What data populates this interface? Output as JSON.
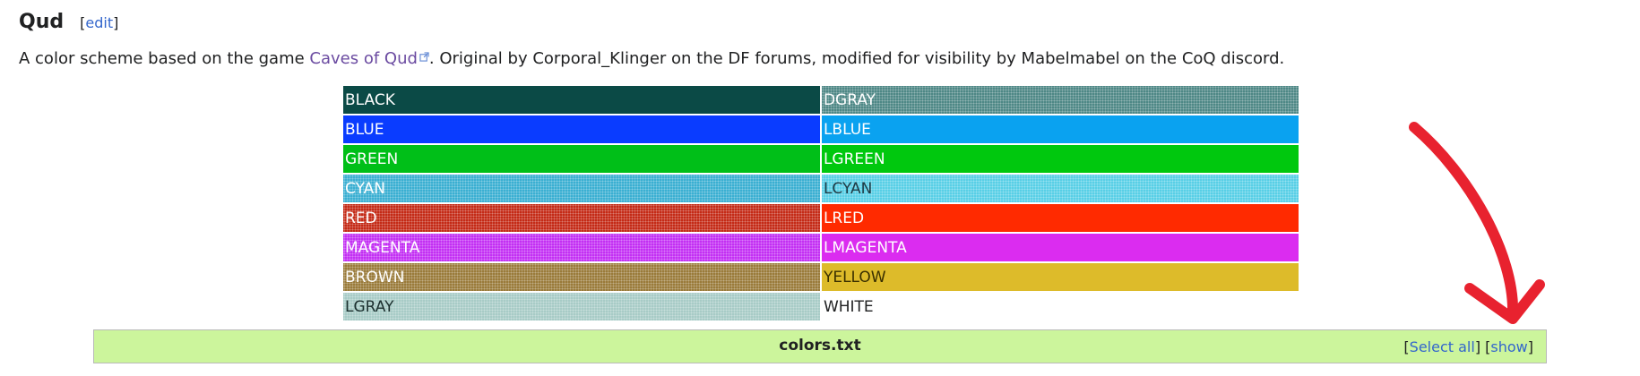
{
  "section": {
    "title": "Qud",
    "edit_open": "[",
    "edit_label": "edit",
    "edit_close": "]"
  },
  "description": {
    "prefix": "A color scheme based on the game ",
    "link_text": "Caves of Qud",
    "suffix": ". Original by Corporal_Klinger on the DF forums, modified for visibility by Mabelmabel on the CoQ discord."
  },
  "colors": [
    {
      "name": "BLACK",
      "bg": "#0b4a46",
      "fg": "#ffffff",
      "dither": ""
    },
    {
      "name": "DGRAY",
      "bg": "#4e8886",
      "fg": "#ffffff",
      "dither": "dither"
    },
    {
      "name": "BLUE",
      "bg": "#0a3cff",
      "fg": "#ffffff",
      "dither": ""
    },
    {
      "name": "LBLUE",
      "bg": "#0aa2f0",
      "fg": "#ffffff",
      "dither": ""
    },
    {
      "name": "GREEN",
      "bg": "#00bf18",
      "fg": "#ffffff",
      "dither": ""
    },
    {
      "name": "LGREEN",
      "bg": "#00c80e",
      "fg": "#ffffff",
      "dither": ""
    },
    {
      "name": "CYAN",
      "bg": "#3aafd2",
      "fg": "#ffffff",
      "dither": "dither"
    },
    {
      "name": "LCYAN",
      "bg": "#58cfe6",
      "fg": "#1f3a44",
      "dither": "dither"
    },
    {
      "name": "RED",
      "bg": "#c42a16",
      "fg": "#ffffff",
      "dither": "dither"
    },
    {
      "name": "LRED",
      "bg": "#ff2a00",
      "fg": "#ffffff",
      "dither": ""
    },
    {
      "name": "MAGENTA",
      "bg": "#c32ff3",
      "fg": "#ffffff",
      "dither": "dither"
    },
    {
      "name": "LMAGENTA",
      "bg": "#db2cf0",
      "fg": "#ffffff",
      "dither": ""
    },
    {
      "name": "BROWN",
      "bg": "#9a7b3a",
      "fg": "#ffffff",
      "dither": "dither"
    },
    {
      "name": "YELLOW",
      "bg": "#ddbb2a",
      "fg": "#3a3000",
      "dither": ""
    },
    {
      "name": "LGRAY",
      "bg": "#a7cbc6",
      "fg": "#1b2f2e",
      "dither": "dither"
    },
    {
      "name": "WHITE",
      "bg": "#ffffff",
      "fg": "#202122",
      "dither": ""
    }
  ],
  "file_bar": {
    "filename": "colors.txt",
    "select_all_label": "Select all",
    "show_label": "show"
  },
  "annotation": {
    "arrow_color": "#e8222f"
  }
}
